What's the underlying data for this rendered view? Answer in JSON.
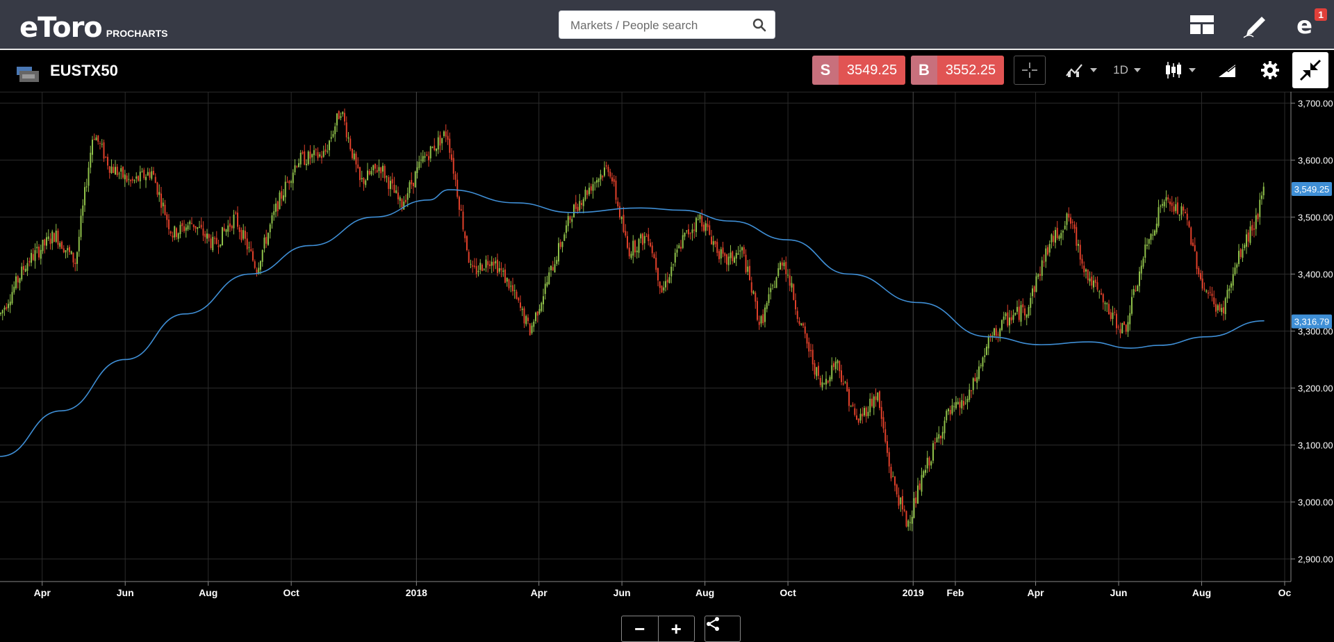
{
  "header": {
    "logo_text": "eToro",
    "logo_sub": "PROCHARTS",
    "search_placeholder": "Markets / People search",
    "notification_count": "1"
  },
  "instrument": {
    "name": "EUSTX50",
    "sell_tag": "S",
    "sell_price": "3549.25",
    "buy_tag": "B",
    "buy_price": "3552.25",
    "timeframe": "1D"
  },
  "chart_data": {
    "type": "candlestick",
    "y_ticks": [
      "3,700.00",
      "3,600.00",
      "3,500.00",
      "3,400.00",
      "3,300.00",
      "3,200.00",
      "3,100.00",
      "3,000.00",
      "2,900.00"
    ],
    "ylim": [
      2875,
      3720
    ],
    "x_labels": [
      "Apr",
      "Jun",
      "Aug",
      "Oct",
      "2018",
      "Apr",
      "Jun",
      "Aug",
      "Oct",
      "2019",
      "Feb",
      "Apr",
      "Jun",
      "Aug",
      "Oc"
    ],
    "last_price_label": "3,549.25",
    "ma_label": "3,316.79",
    "colors": {
      "up": "#8fc14a",
      "down": "#e0402a",
      "ma": "#3f8fd6",
      "last_price_bg": "#3f8fd6",
      "ma_bg": "#3f8fd6",
      "grid": "#2b2b2b"
    },
    "price_path": [
      {
        "t": "2017-03-01",
        "v": 3330
      },
      {
        "t": "2017-03-20",
        "v": 3420
      },
      {
        "t": "2017-04-10",
        "v": 3470
      },
      {
        "t": "2017-04-25",
        "v": 3420
      },
      {
        "t": "2017-05-08",
        "v": 3650
      },
      {
        "t": "2017-05-20",
        "v": 3590
      },
      {
        "t": "2017-06-05",
        "v": 3560
      },
      {
        "t": "2017-06-20",
        "v": 3580
      },
      {
        "t": "2017-07-05",
        "v": 3470
      },
      {
        "t": "2017-07-20",
        "v": 3490
      },
      {
        "t": "2017-08-05",
        "v": 3450
      },
      {
        "t": "2017-08-20",
        "v": 3500
      },
      {
        "t": "2017-09-05",
        "v": 3410
      },
      {
        "t": "2017-09-20",
        "v": 3520
      },
      {
        "t": "2017-10-05",
        "v": 3600
      },
      {
        "t": "2017-10-25",
        "v": 3610
      },
      {
        "t": "2017-11-06",
        "v": 3690
      },
      {
        "t": "2017-11-20",
        "v": 3560
      },
      {
        "t": "2017-12-05",
        "v": 3590
      },
      {
        "t": "2017-12-20",
        "v": 3520
      },
      {
        "t": "2018-01-05",
        "v": 3600
      },
      {
        "t": "2018-01-23",
        "v": 3650
      },
      {
        "t": "2018-02-10",
        "v": 3400
      },
      {
        "t": "2018-02-25",
        "v": 3430
      },
      {
        "t": "2018-03-10",
        "v": 3380
      },
      {
        "t": "2018-03-25",
        "v": 3300
      },
      {
        "t": "2018-04-10",
        "v": 3410
      },
      {
        "t": "2018-04-25",
        "v": 3510
      },
      {
        "t": "2018-05-10",
        "v": 3560
      },
      {
        "t": "2018-05-22",
        "v": 3590
      },
      {
        "t": "2018-06-05",
        "v": 3440
      },
      {
        "t": "2018-06-20",
        "v": 3470
      },
      {
        "t": "2018-06-30",
        "v": 3370
      },
      {
        "t": "2018-07-15",
        "v": 3460
      },
      {
        "t": "2018-07-28",
        "v": 3500
      },
      {
        "t": "2018-08-15",
        "v": 3420
      },
      {
        "t": "2018-08-28",
        "v": 3440
      },
      {
        "t": "2018-09-10",
        "v": 3310
      },
      {
        "t": "2018-09-27",
        "v": 3430
      },
      {
        "t": "2018-10-10",
        "v": 3310
      },
      {
        "t": "2018-10-25",
        "v": 3200
      },
      {
        "t": "2018-11-05",
        "v": 3250
      },
      {
        "t": "2018-11-20",
        "v": 3140
      },
      {
        "t": "2018-12-05",
        "v": 3190
      },
      {
        "t": "2018-12-15",
        "v": 3050
      },
      {
        "t": "2018-12-27",
        "v": 2960
      },
      {
        "t": "2019-01-10",
        "v": 3060
      },
      {
        "t": "2019-01-25",
        "v": 3150
      },
      {
        "t": "2019-02-10",
        "v": 3180
      },
      {
        "t": "2019-02-25",
        "v": 3280
      },
      {
        "t": "2019-03-10",
        "v": 3320
      },
      {
        "t": "2019-03-25",
        "v": 3340
      },
      {
        "t": "2019-04-10",
        "v": 3450
      },
      {
        "t": "2019-04-25",
        "v": 3500
      },
      {
        "t": "2019-05-08",
        "v": 3400
      },
      {
        "t": "2019-05-25",
        "v": 3330
      },
      {
        "t": "2019-06-05",
        "v": 3300
      },
      {
        "t": "2019-06-20",
        "v": 3440
      },
      {
        "t": "2019-07-03",
        "v": 3530
      },
      {
        "t": "2019-07-20",
        "v": 3500
      },
      {
        "t": "2019-08-01",
        "v": 3380
      },
      {
        "t": "2019-08-15",
        "v": 3330
      },
      {
        "t": "2019-08-28",
        "v": 3430
      },
      {
        "t": "2019-09-10",
        "v": 3500
      },
      {
        "t": "2019-09-16",
        "v": 3549
      }
    ],
    "ma_path": [
      {
        "t": "2017-03-01",
        "v": 3080
      },
      {
        "t": "2017-04-15",
        "v": 3160
      },
      {
        "t": "2017-06-01",
        "v": 3250
      },
      {
        "t": "2017-07-15",
        "v": 3330
      },
      {
        "t": "2017-09-01",
        "v": 3400
      },
      {
        "t": "2017-10-15",
        "v": 3450
      },
      {
        "t": "2017-12-01",
        "v": 3500
      },
      {
        "t": "2018-01-10",
        "v": 3530
      },
      {
        "t": "2018-01-25",
        "v": 3548
      },
      {
        "t": "2018-03-15",
        "v": 3525
      },
      {
        "t": "2018-04-25",
        "v": 3508
      },
      {
        "t": "2018-06-15",
        "v": 3516
      },
      {
        "t": "2018-07-15",
        "v": 3512
      },
      {
        "t": "2018-08-20",
        "v": 3493
      },
      {
        "t": "2018-10-01",
        "v": 3460
      },
      {
        "t": "2018-11-15",
        "v": 3400
      },
      {
        "t": "2019-01-05",
        "v": 3350
      },
      {
        "t": "2019-02-25",
        "v": 3290
      },
      {
        "t": "2019-04-05",
        "v": 3276
      },
      {
        "t": "2019-05-10",
        "v": 3281
      },
      {
        "t": "2019-06-10",
        "v": 3270
      },
      {
        "t": "2019-07-01",
        "v": 3275
      },
      {
        "t": "2019-08-05",
        "v": 3290
      },
      {
        "t": "2019-09-16",
        "v": 3318
      }
    ]
  }
}
